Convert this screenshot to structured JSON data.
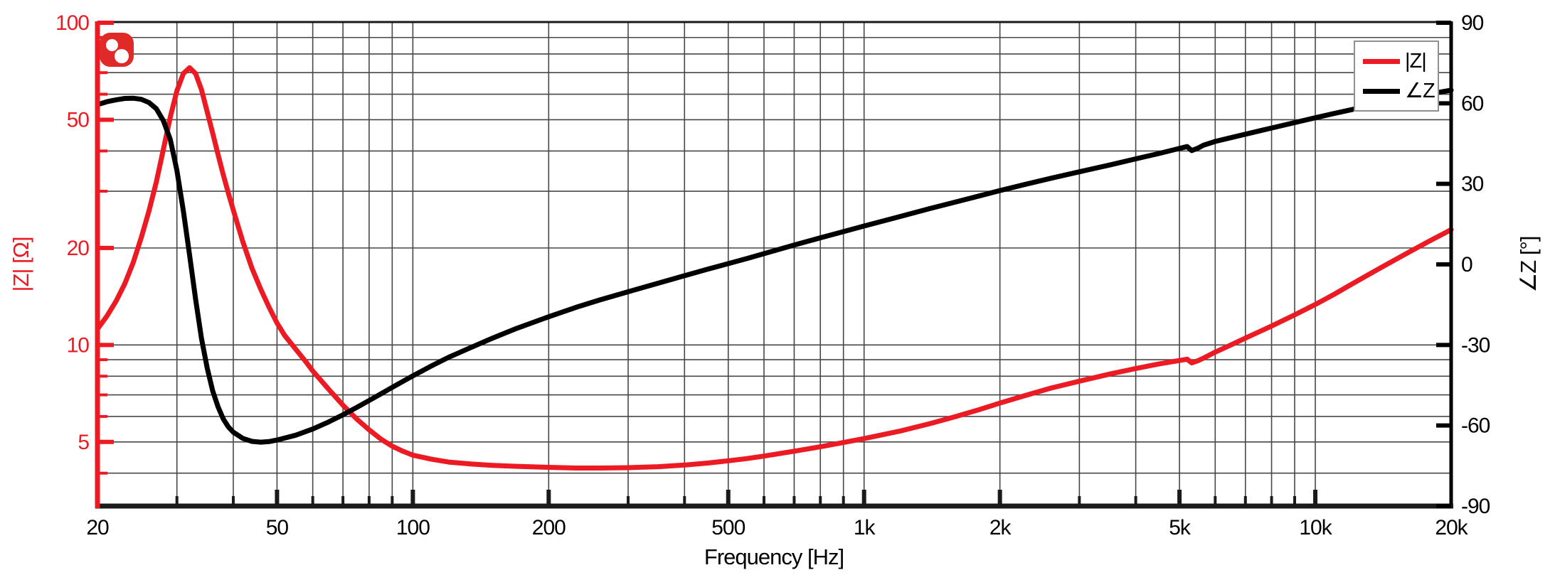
{
  "chart_data": {
    "type": "line",
    "title": "",
    "xlabel": "Frequency [Hz]",
    "ylabel_left": "|Z| [Ω]",
    "ylabel_right": "∠Z [°]",
    "grid": "on",
    "colors": {
      "impedance": "#ec1b23",
      "phase": "#000000",
      "grid": "#474747",
      "left_axis": "#ec1b23",
      "bottom_axis": "#1a1a1a",
      "right_axis": "#000000",
      "legend_border": "#8f8f8f",
      "logo": "#e02a28"
    },
    "x_axis": {
      "scale": "log",
      "min": 20,
      "max": 20000,
      "ticks_labeled": [
        {
          "label": "20",
          "value": 20
        },
        {
          "label": "50",
          "value": 50
        },
        {
          "label": "100",
          "value": 100
        },
        {
          "label": "200",
          "value": 200
        },
        {
          "label": "500",
          "value": 500
        },
        {
          "label": "1k",
          "value": 1000
        },
        {
          "label": "2k",
          "value": 2000
        },
        {
          "label": "5k",
          "value": 5000
        },
        {
          "label": "10k",
          "value": 10000
        },
        {
          "label": "20k",
          "value": 20000
        }
      ],
      "ticks_minor": [
        30,
        40,
        60,
        70,
        80,
        90,
        300,
        400,
        600,
        700,
        800,
        900,
        3000,
        4000,
        6000,
        7000,
        8000,
        9000
      ]
    },
    "y_left": {
      "scale": "log",
      "min": 3.16,
      "max": 100,
      "unit": "Ω",
      "ticks_labeled": [
        {
          "label": "100",
          "value": 100
        },
        {
          "label": "50",
          "value": 50
        },
        {
          "label": "20",
          "value": 20
        },
        {
          "label": "10",
          "value": 10
        },
        {
          "label": "5",
          "value": 5
        }
      ],
      "ticks_minor": [
        90,
        80,
        70,
        60,
        40,
        30,
        9,
        8,
        7,
        6,
        4
      ]
    },
    "y_right": {
      "scale": "linear",
      "min": -90,
      "max": 90,
      "unit": "°",
      "ticks_labeled": [
        {
          "label": "90",
          "value": 90
        },
        {
          "label": "60",
          "value": 60
        },
        {
          "label": "30",
          "value": 30
        },
        {
          "label": "0",
          "value": 0
        },
        {
          "label": "-30",
          "value": -30
        },
        {
          "label": "-60",
          "value": -60
        },
        {
          "label": "-90",
          "value": -90
        }
      ]
    },
    "legend": {
      "position": "top-right",
      "entries": [
        {
          "label": "|Z|",
          "color": "#ec1b23"
        },
        {
          "label": "∠Z",
          "color": "#000000"
        }
      ]
    },
    "series": [
      {
        "name": "|Z|",
        "axis": "left",
        "unit": "Ω",
        "color": "#ec1b23",
        "points": [
          [
            20,
            11.2
          ],
          [
            21,
            12.3
          ],
          [
            22,
            13.7
          ],
          [
            23,
            15.5
          ],
          [
            24,
            18
          ],
          [
            25,
            21.5
          ],
          [
            26,
            26
          ],
          [
            27,
            32
          ],
          [
            28,
            40.5
          ],
          [
            29,
            51
          ],
          [
            30,
            61.5
          ],
          [
            31,
            69.5
          ],
          [
            32,
            72.5
          ],
          [
            33,
            69.5
          ],
          [
            34,
            62
          ],
          [
            35,
            53
          ],
          [
            36,
            45.5
          ],
          [
            37,
            39
          ],
          [
            38,
            33.8
          ],
          [
            39,
            29.6
          ],
          [
            40,
            26.2
          ],
          [
            42,
            20.9
          ],
          [
            44,
            17.3
          ],
          [
            46,
            14.9
          ],
          [
            48,
            13.1
          ],
          [
            50,
            11.7
          ],
          [
            52,
            10.7
          ],
          [
            55,
            9.7
          ],
          [
            58,
            8.85
          ],
          [
            60,
            8.3
          ],
          [
            65,
            7.3
          ],
          [
            70,
            6.5
          ],
          [
            75,
            5.9
          ],
          [
            80,
            5.45
          ],
          [
            85,
            5.1
          ],
          [
            90,
            4.85
          ],
          [
            95,
            4.68
          ],
          [
            100,
            4.55
          ],
          [
            110,
            4.42
          ],
          [
            120,
            4.33
          ],
          [
            135,
            4.27
          ],
          [
            150,
            4.23
          ],
          [
            170,
            4.2
          ],
          [
            200,
            4.17
          ],
          [
            230,
            4.15
          ],
          [
            260,
            4.15
          ],
          [
            300,
            4.16
          ],
          [
            350,
            4.19
          ],
          [
            400,
            4.24
          ],
          [
            450,
            4.3
          ],
          [
            500,
            4.37
          ],
          [
            550,
            4.44
          ],
          [
            600,
            4.52
          ],
          [
            700,
            4.68
          ],
          [
            800,
            4.83
          ],
          [
            900,
            4.98
          ],
          [
            1000,
            5.12
          ],
          [
            1200,
            5.4
          ],
          [
            1400,
            5.7
          ],
          [
            1600,
            6.0
          ],
          [
            1800,
            6.3
          ],
          [
            2000,
            6.6
          ],
          [
            2300,
            7.0
          ],
          [
            2600,
            7.35
          ],
          [
            3000,
            7.72
          ],
          [
            3500,
            8.12
          ],
          [
            4000,
            8.45
          ],
          [
            4500,
            8.73
          ],
          [
            5000,
            8.95
          ],
          [
            5200,
            9.03
          ],
          [
            5320,
            8.8
          ],
          [
            5480,
            8.92
          ],
          [
            5650,
            9.1
          ],
          [
            6000,
            9.5
          ],
          [
            6500,
            10.0
          ],
          [
            7000,
            10.5
          ],
          [
            8000,
            11.45
          ],
          [
            9000,
            12.4
          ],
          [
            10000,
            13.35
          ],
          [
            11000,
            14.35
          ],
          [
            12000,
            15.4
          ],
          [
            14000,
            17.4
          ],
          [
            16000,
            19.3
          ],
          [
            18000,
            21.1
          ],
          [
            20000,
            22.8
          ]
        ]
      },
      {
        "name": "∠Z",
        "axis": "right",
        "unit": "°",
        "color": "#000000",
        "points": [
          [
            20,
            59.5
          ],
          [
            21,
            60.6
          ],
          [
            22,
            61.3
          ],
          [
            23,
            61.8
          ],
          [
            24,
            61.9
          ],
          [
            25,
            61.5
          ],
          [
            26,
            60.3
          ],
          [
            27,
            58
          ],
          [
            28,
            53.5
          ],
          [
            29,
            46.5
          ],
          [
            30,
            35
          ],
          [
            31,
            20
          ],
          [
            32,
            3.5
          ],
          [
            33,
            -13
          ],
          [
            34,
            -27.5
          ],
          [
            35,
            -38.5
          ],
          [
            36,
            -47
          ],
          [
            37,
            -53
          ],
          [
            38,
            -57.5
          ],
          [
            39,
            -60.5
          ],
          [
            40,
            -62.5
          ],
          [
            42,
            -64.8
          ],
          [
            44,
            -65.9
          ],
          [
            46,
            -66.2
          ],
          [
            48,
            -66
          ],
          [
            50,
            -65.4
          ],
          [
            55,
            -63.6
          ],
          [
            60,
            -61.3
          ],
          [
            65,
            -58.7
          ],
          [
            70,
            -56
          ],
          [
            75,
            -53.3
          ],
          [
            80,
            -50.7
          ],
          [
            85,
            -48.2
          ],
          [
            90,
            -45.8
          ],
          [
            95,
            -43.6
          ],
          [
            100,
            -41.5
          ],
          [
            110,
            -37.8
          ],
          [
            120,
            -34.6
          ],
          [
            135,
            -30.8
          ],
          [
            150,
            -27.5
          ],
          [
            170,
            -23.8
          ],
          [
            200,
            -19.5
          ],
          [
            230,
            -16
          ],
          [
            260,
            -13.2
          ],
          [
            300,
            -10.2
          ],
          [
            350,
            -7
          ],
          [
            400,
            -4.2
          ],
          [
            450,
            -1.8
          ],
          [
            500,
            0.3
          ],
          [
            550,
            2.2
          ],
          [
            600,
            4
          ],
          [
            700,
            7.2
          ],
          [
            800,
            9.9
          ],
          [
            900,
            12.2
          ],
          [
            1000,
            14.3
          ],
          [
            1200,
            17.8
          ],
          [
            1400,
            20.8
          ],
          [
            1600,
            23.3
          ],
          [
            1800,
            25.5
          ],
          [
            2000,
            27.5
          ],
          [
            2300,
            30
          ],
          [
            2600,
            32.1
          ],
          [
            3000,
            34.5
          ],
          [
            3500,
            37
          ],
          [
            4000,
            39.3
          ],
          [
            4500,
            41.3
          ],
          [
            5000,
            43.2
          ],
          [
            5200,
            43.9
          ],
          [
            5320,
            42.4
          ],
          [
            5480,
            43.2
          ],
          [
            5650,
            44.4
          ],
          [
            6000,
            45.8
          ],
          [
            6500,
            47.2
          ],
          [
            7000,
            48.5
          ],
          [
            8000,
            50.8
          ],
          [
            9000,
            52.8
          ],
          [
            10000,
            54.6
          ],
          [
            11000,
            56.2
          ],
          [
            12000,
            57.6
          ],
          [
            14000,
            60
          ],
          [
            16000,
            61.9
          ],
          [
            18000,
            63.5
          ],
          [
            20000,
            64.9
          ]
        ]
      }
    ]
  }
}
